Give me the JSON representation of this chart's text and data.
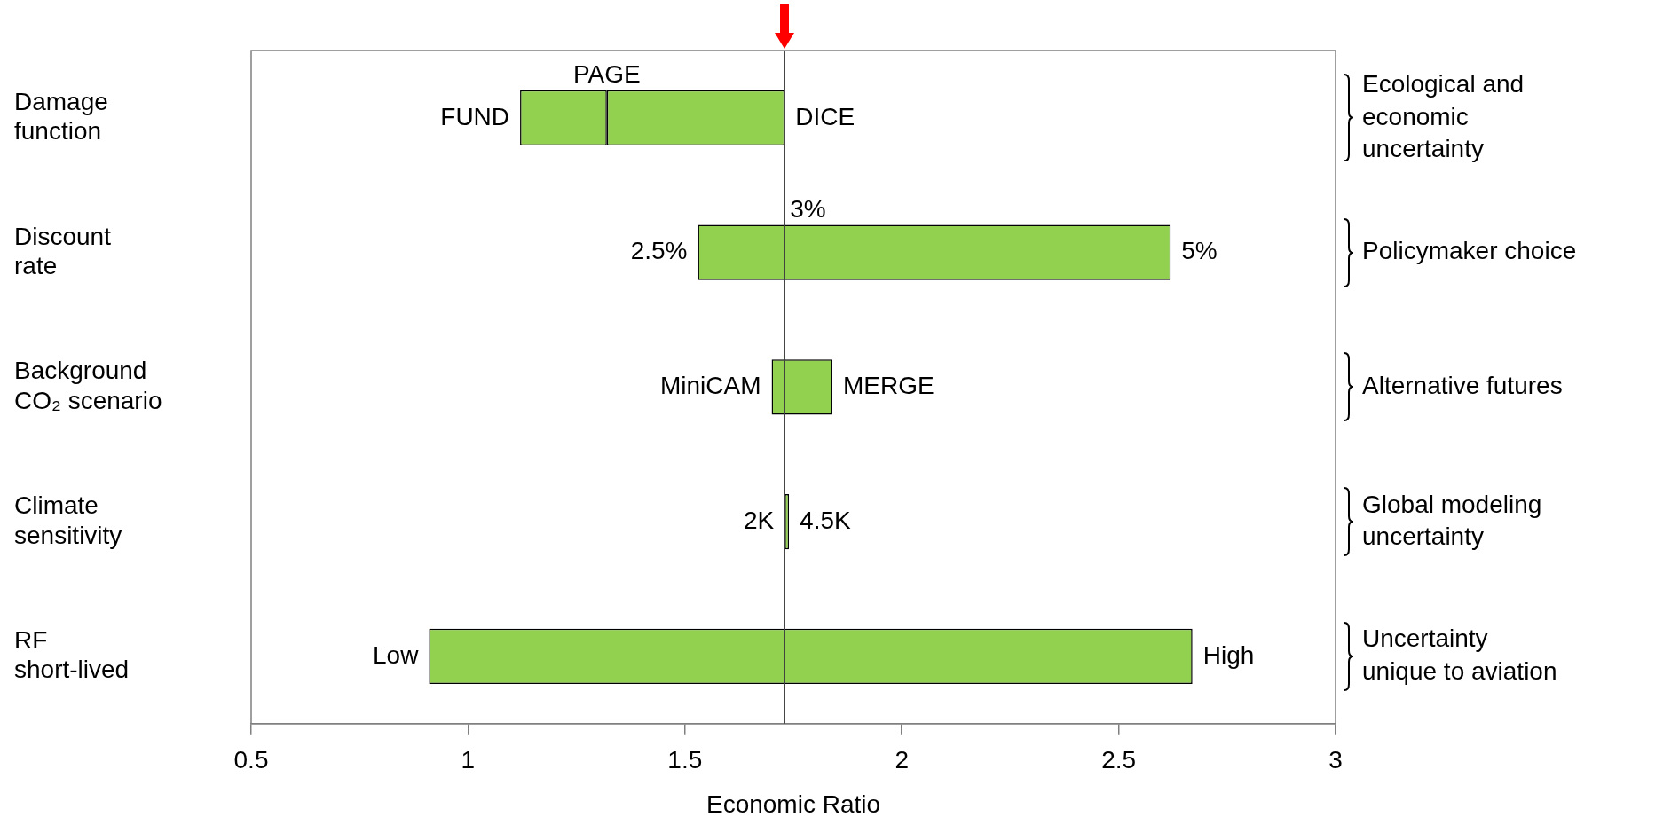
{
  "chart_data": {
    "type": "bar",
    "orientation": "horizontal",
    "xlabel": "Economic Ratio",
    "categories": [
      "Damage\nfunction",
      "Discount\nrate",
      "Background\nCO₂ scenario",
      "Climate\nsensitivity",
      "RF\nshort-lived"
    ],
    "series": [
      {
        "color": "#92d050",
        "base": [
          1.12,
          1.53,
          1.7,
          1.73,
          0.91
        ],
        "values": [
          0.2,
          1.09,
          0.14,
          0.01,
          1.76
        ]
      },
      {
        "color": "#92d050",
        "base": [
          1.32,
          null,
          null,
          null,
          null
        ],
        "values": [
          0.41,
          null,
          null,
          null,
          null
        ]
      }
    ],
    "xlim": [
      0.5,
      3
    ],
    "xticks": [
      0.5,
      1,
      1.5,
      2,
      2.5,
      3
    ],
    "grid": false,
    "legend": false,
    "ref_lines": [
      {
        "axis": "x",
        "value": 1.73,
        "color": "#404040"
      }
    ],
    "annotations": [
      {
        "text": "FUND",
        "x": 1.12,
        "y": "Damage\nfunction"
      },
      {
        "text": "PAGE",
        "x": 1.32,
        "y": "Damage\nfunction"
      },
      {
        "text": "DICE",
        "x": 1.73,
        "y": "Damage\nfunction"
      },
      {
        "text": "2.5%",
        "x": 1.53,
        "y": "Discount\nrate"
      },
      {
        "text": "3%",
        "x": 1.73,
        "y": "Discount\nrate"
      },
      {
        "text": "5%",
        "x": 2.62,
        "y": "Discount\nrate"
      },
      {
        "text": "MiniCAM",
        "x": 1.7,
        "y": "Background\nCO₂ scenario"
      },
      {
        "text": "MERGE",
        "x": 1.84,
        "y": "Background\nCO₂ scenario"
      },
      {
        "text": "2K",
        "x": 1.73,
        "y": "Climate\nsensitivity"
      },
      {
        "text": "4.5K",
        "x": 1.74,
        "y": "Climate\nsensitivity"
      },
      {
        "text": "Low",
        "x": 0.91,
        "y": "RF\nshort-lived"
      },
      {
        "text": "High",
        "x": 2.67,
        "y": "RF\nshort-lived"
      },
      "Ecological and\neconomic\nuncertainty",
      "Policymaker choice",
      "Alternative futures",
      "Global modeling\nuncertainty",
      "Uncertainty\nunique to aviation"
    ]
  }
}
